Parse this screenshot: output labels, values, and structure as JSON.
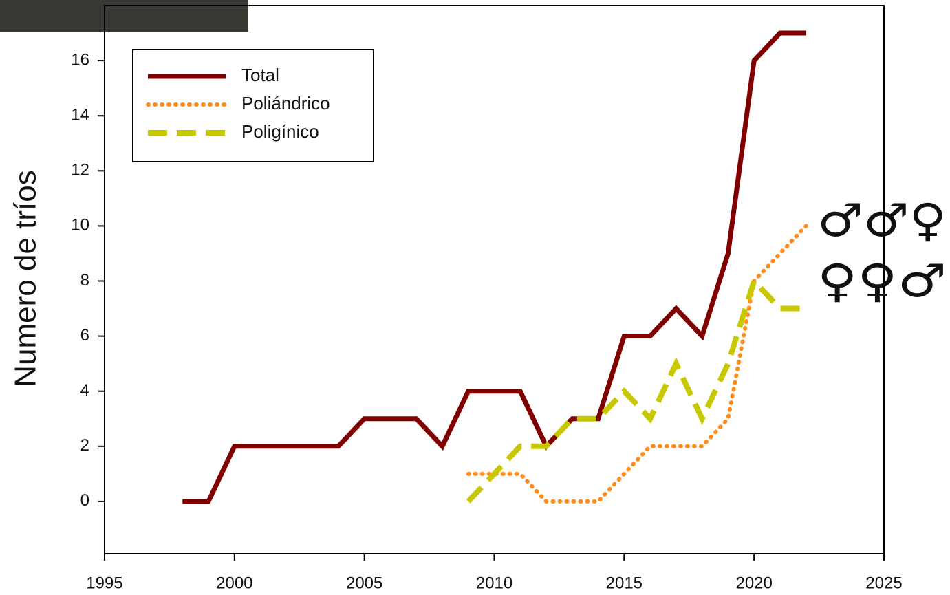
{
  "chart_data": {
    "type": "line",
    "y_label": "Numero de tríos",
    "x": [
      1998,
      1999,
      2000,
      2001,
      2002,
      2003,
      2004,
      2005,
      2006,
      2007,
      2008,
      2009,
      2010,
      2011,
      2012,
      2013,
      2014,
      2015,
      2016,
      2017,
      2018,
      2019,
      2020,
      2021,
      2022
    ],
    "series": [
      {
        "name": "Total",
        "color": "#800000",
        "line_style": "solid",
        "values": [
          0,
          0,
          2,
          2,
          2,
          2,
          2,
          3,
          3,
          3,
          2,
          4,
          4,
          4,
          2,
          3,
          3,
          6,
          6,
          7,
          6,
          9,
          16,
          17,
          17
        ]
      },
      {
        "name": "Poliándrico",
        "color": "#ff8c1a",
        "line_style": "dotted",
        "values": [
          null,
          null,
          null,
          null,
          null,
          null,
          null,
          null,
          null,
          null,
          null,
          1,
          1,
          1,
          0,
          0,
          0,
          1,
          2,
          2,
          2,
          3,
          8,
          9,
          10
        ]
      },
      {
        "name": "Poligínico",
        "color": "#c8c800",
        "line_style": "dashed",
        "values": [
          null,
          null,
          null,
          null,
          null,
          null,
          null,
          null,
          null,
          null,
          null,
          0,
          1,
          2,
          2,
          3,
          3,
          4,
          3,
          5,
          3,
          5,
          8,
          7,
          7
        ]
      }
    ],
    "xlim": [
      1995,
      2025
    ],
    "xticks": [
      1995,
      2000,
      2005,
      2010,
      2015,
      2020,
      2025
    ],
    "ylim": [
      -1.9,
      18
    ],
    "yticks": [
      0,
      2,
      4,
      6,
      8,
      10,
      12,
      14,
      16
    ],
    "grid": false,
    "legend": "upper left",
    "annotations": [
      "♂♂♀",
      "♀♀♂"
    ]
  }
}
